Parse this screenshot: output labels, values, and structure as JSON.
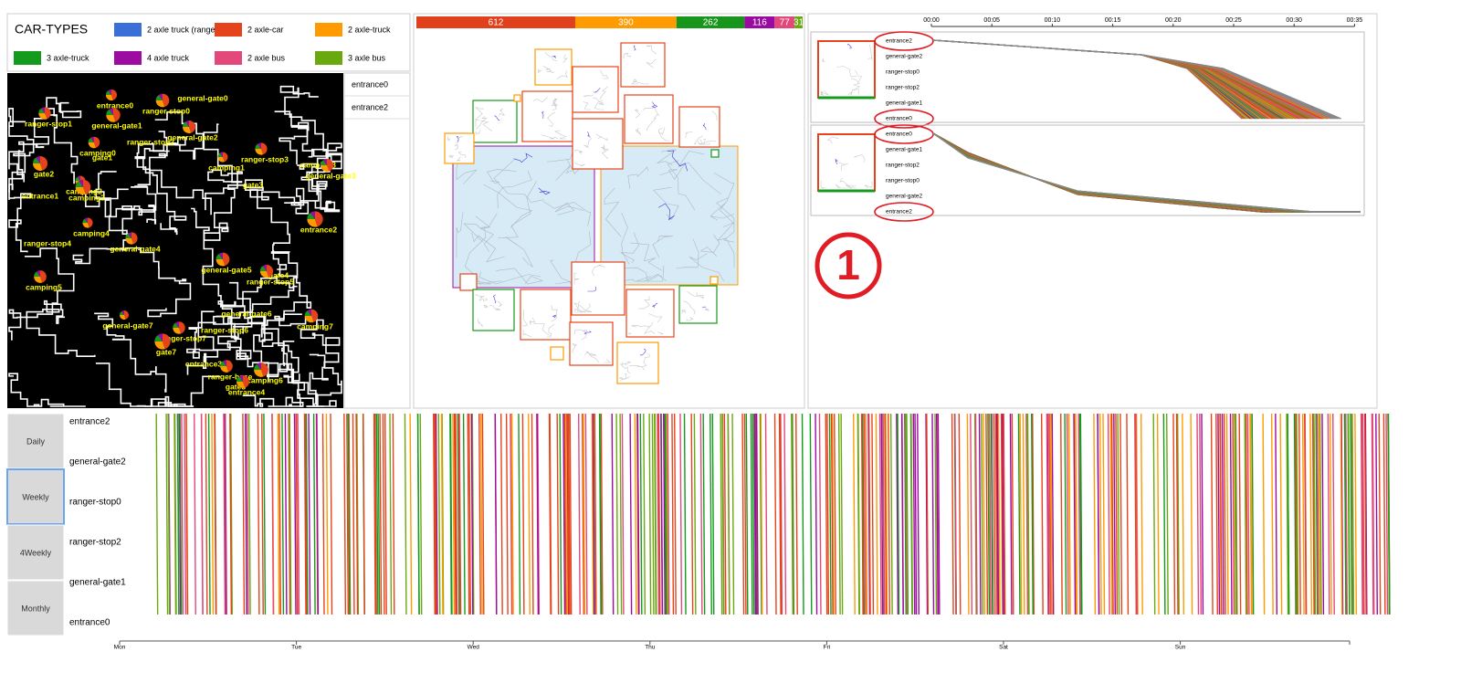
{
  "legend": {
    "title": "CAR-TYPES",
    "items": [
      {
        "label": "2 axle truck (ranger)",
        "color": "#3a6fd8"
      },
      {
        "label": "2 axle-car",
        "color": "#e5431b"
      },
      {
        "label": "2 axle-truck",
        "color": "#ff9a00"
      },
      {
        "label": "3 axle-truck",
        "color": "#149a1c"
      },
      {
        "label": "4 axle truck",
        "color": "#9c0ca0"
      },
      {
        "label": "2 axle bus",
        "color": "#e3487b"
      },
      {
        "label": "3 axle bus",
        "color": "#6aa810"
      }
    ]
  },
  "map": {
    "locations": [
      "entrance0",
      "ranger-stop0",
      "general-gate0",
      "ranger-stop1",
      "general-gate1",
      "ranger-stop2",
      "general-gate2",
      "camping0",
      "gate1",
      "camping1",
      "ranger-stop3",
      "camping8",
      "general-gate3",
      "gate2",
      "entrance1",
      "camping2",
      "camping3",
      "gate3",
      "camping4",
      "entrance2",
      "ranger-stop4",
      "general-gate4",
      "general-gate5",
      "gate4",
      "ranger-stop5",
      "camping5",
      "general-gate6",
      "camping7",
      "general-gate7",
      "ranger-stop6",
      "ranger-stop7",
      "gate7",
      "entrance3",
      "ranger-base",
      "camping6",
      "gate5",
      "entrance4"
    ]
  },
  "selected_list": [
    "entrance0",
    "entrance2"
  ],
  "count_bar": {
    "values": [
      612,
      390,
      262,
      116,
      77,
      31
    ],
    "colors": [
      "#e0401c",
      "#ff9a00",
      "#18961c",
      "#9a0aa0",
      "#e3487b",
      "#6aa810"
    ]
  },
  "timeline": {
    "ticks": [
      "00:00",
      "00:05",
      "00:10",
      "00:15",
      "00:20",
      "00:25",
      "00:30",
      "00:35"
    ],
    "panels": [
      {
        "stops": [
          "entrance2",
          "general-gate2",
          "ranger-stop0",
          "ranger-stop2",
          "general-gate1",
          "entrance0"
        ]
      },
      {
        "stops": [
          "entrance0",
          "general-gate1",
          "ranger-stop2",
          "ranger-stop0",
          "general-gate2",
          "entrance2"
        ]
      }
    ],
    "annotation": "1"
  },
  "bottom": {
    "buttons": [
      "Daily",
      "Weekly",
      "4Weekly",
      "Monthly"
    ],
    "active_button": "Weekly",
    "rows": [
      "entrance2",
      "general-gate2",
      "ranger-stop0",
      "ranger-stop2",
      "general-gate1",
      "entrance0"
    ],
    "days": [
      "Mon",
      "Tue",
      "Wed",
      "Thu",
      "Fri",
      "Sat",
      "Sun"
    ]
  }
}
